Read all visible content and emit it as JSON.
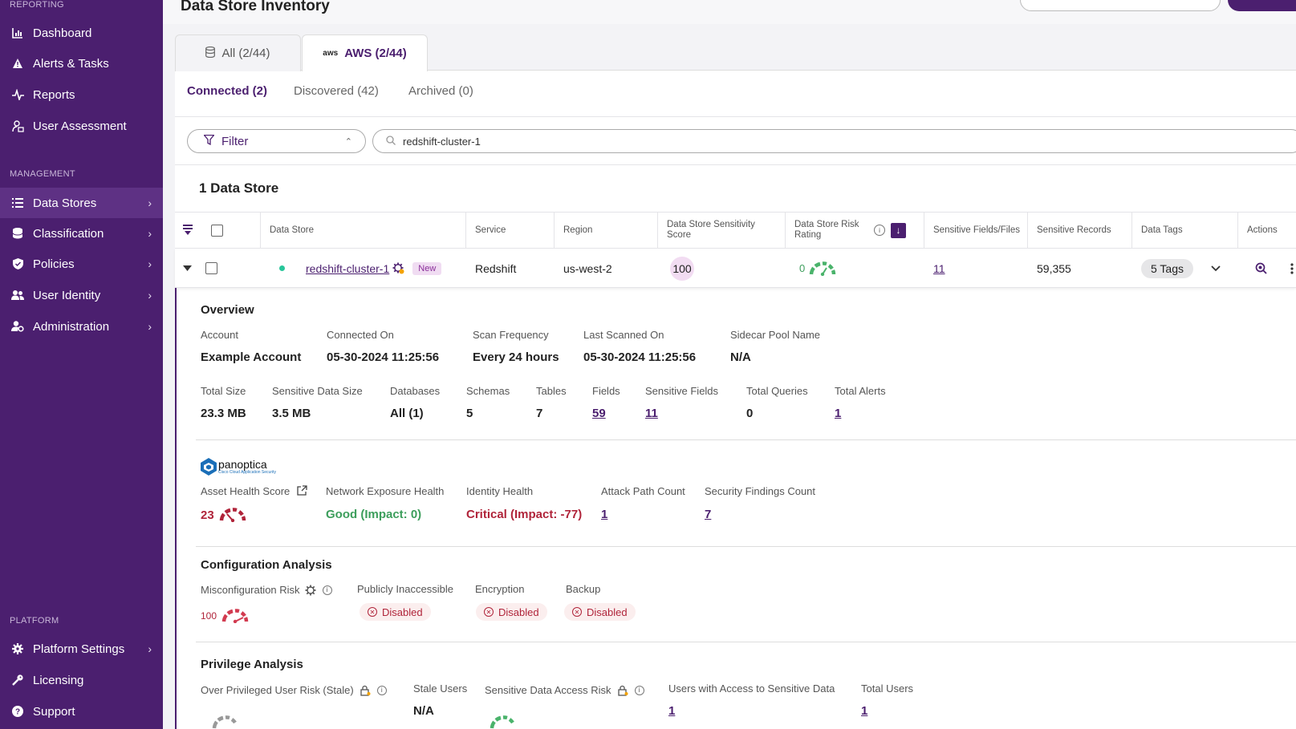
{
  "sidebar": {
    "reporting_label": "REPORTING",
    "management_label": "MANAGEMENT",
    "platform_label": "PLATFORM",
    "reporting_items": [
      {
        "label": "Dashboard",
        "icon": "chart-icon"
      },
      {
        "label": "Alerts & Tasks",
        "icon": "warning-icon"
      },
      {
        "label": "Reports",
        "icon": "pulse-icon"
      },
      {
        "label": "User Assessment",
        "icon": "user-lock-icon"
      }
    ],
    "management_items": [
      {
        "label": "Data Stores",
        "icon": "list-icon",
        "active": true
      },
      {
        "label": "Classification",
        "icon": "database-icon"
      },
      {
        "label": "Policies",
        "icon": "shield-icon"
      },
      {
        "label": "User Identity",
        "icon": "users-icon"
      },
      {
        "label": "Administration",
        "icon": "user-gear-icon"
      }
    ],
    "platform_items": [
      {
        "label": "Platform Settings",
        "icon": "gear-icon"
      },
      {
        "label": "Licensing",
        "icon": "key-icon"
      },
      {
        "label": "Support",
        "icon": "question-icon"
      }
    ]
  },
  "header": {
    "title": "Data Store Inventory"
  },
  "tabs": [
    {
      "label": "All (2/44)",
      "icon": "database-icon"
    },
    {
      "label": "AWS (2/44)",
      "icon": "aws-icon",
      "active": true
    }
  ],
  "aws_logo_text": "aws",
  "subtabs": [
    {
      "label": "Connected (2)",
      "active": true
    },
    {
      "label": "Discovered (42)"
    },
    {
      "label": "Archived (0)"
    }
  ],
  "filter": {
    "label": "Filter"
  },
  "search": {
    "value": "redshift-cluster-1"
  },
  "count_title": "1 Data Store",
  "table": {
    "columns": [
      "Data Store",
      "Service",
      "Region",
      "Data Store Sensitivity Score",
      "Data Store Risk Rating",
      "Sensitive Fields/Files",
      "Sensitive Records",
      "Data Tags",
      "Actions"
    ],
    "row": {
      "name": "redshift-cluster-1",
      "badge": "New",
      "service": "Redshift",
      "region": "us-west-2",
      "sensitivity_score": "100",
      "risk_rating": "0",
      "sensitive_fields": "11",
      "sensitive_records": "59,355",
      "tags": "5 Tags"
    }
  },
  "overview": {
    "title": "Overview",
    "fields1": [
      {
        "label": "Account",
        "value": "Example Account"
      },
      {
        "label": "Connected On",
        "value": "05-30-2024 11:25:56"
      },
      {
        "label": "Scan Frequency",
        "value": "Every 24 hours"
      },
      {
        "label": "Last Scanned On",
        "value": "05-30-2024 11:25:56"
      },
      {
        "label": "Sidecar Pool Name",
        "value": "N/A"
      }
    ],
    "fields2": [
      {
        "label": "Total Size",
        "value": "23.3 MB"
      },
      {
        "label": "Sensitive Data Size",
        "value": "3.5 MB"
      },
      {
        "label": "Databases",
        "value": "All (1)"
      },
      {
        "label": "Schemas",
        "value": "5"
      },
      {
        "label": "Tables",
        "value": "7"
      },
      {
        "label": "Fields",
        "value": "59"
      },
      {
        "label": "Sensitive Fields",
        "value": "11"
      },
      {
        "label": "Total Queries",
        "value": "0"
      },
      {
        "label": "Total Alerts",
        "value": "1"
      }
    ]
  },
  "panoptica": {
    "brand": "panoptica",
    "tagline": "Cisco Cloud Application Security",
    "fields": [
      {
        "label": "Asset Health Score",
        "value": "23"
      },
      {
        "label": "Network Exposure Health",
        "value": "Good (Impact: 0)"
      },
      {
        "label": "Identity Health",
        "value": "Critical (Impact: -77)"
      },
      {
        "label": "Attack Path Count",
        "value": "1"
      },
      {
        "label": "Security Findings Count",
        "value": "7"
      }
    ]
  },
  "config": {
    "title": "Configuration Analysis",
    "misconfig_label": "Misconfiguration Risk",
    "misconfig_value": "100",
    "publicly_label": "Publicly Inaccessible",
    "encryption_label": "Encryption",
    "backup_label": "Backup",
    "disabled": "Disabled"
  },
  "privilege": {
    "title": "Privilege Analysis",
    "fields": [
      {
        "label": "Over Privileged User Risk (Stale)"
      },
      {
        "label": "Stale Users",
        "value": "N/A"
      },
      {
        "label": "Sensitive Data Access Risk"
      },
      {
        "label": "Users with Access to Sensitive Data",
        "value": "1"
      },
      {
        "label": "Total Users",
        "value": "1"
      }
    ]
  },
  "colors": {
    "brand": "#4b1f6f",
    "good": "#3d9e5c",
    "critical": "#b0243a"
  }
}
